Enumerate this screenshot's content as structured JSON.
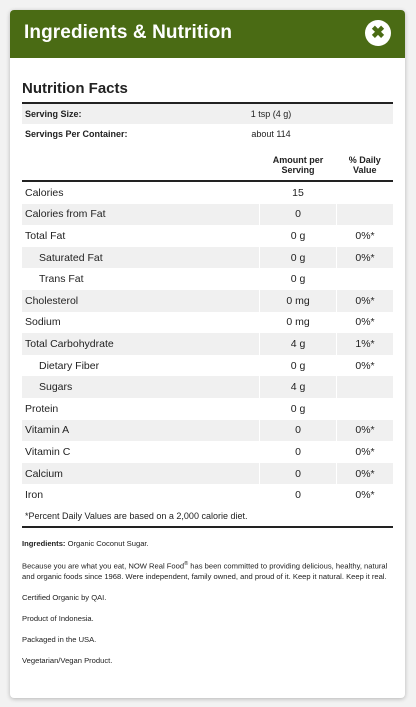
{
  "header": {
    "title": "Ingredients & Nutrition",
    "close_glyph": "✖"
  },
  "nutrition": {
    "title": "Nutrition Facts",
    "serving_size_label": "Serving Size:",
    "serving_size_value": "1 tsp (4 g)",
    "servings_per_container_label": "Servings Per Container:",
    "servings_per_container_value": "about 114",
    "columns": {
      "amount": "Amount per Serving",
      "dv": "% Daily Value"
    },
    "rows": [
      {
        "name": "Calories",
        "amount": "15",
        "dv": "",
        "indent": false
      },
      {
        "name": "Calories from Fat",
        "amount": "0",
        "dv": "",
        "indent": false
      },
      {
        "name": "Total Fat",
        "amount": "0 g",
        "dv": "0%*",
        "indent": false
      },
      {
        "name": "Saturated Fat",
        "amount": "0 g",
        "dv": "0%*",
        "indent": true
      },
      {
        "name": "Trans Fat",
        "amount": "0 g",
        "dv": "",
        "indent": true
      },
      {
        "name": "Cholesterol",
        "amount": "0 mg",
        "dv": "0%*",
        "indent": false
      },
      {
        "name": "Sodium",
        "amount": "0 mg",
        "dv": "0%*",
        "indent": false
      },
      {
        "name": "Total Carbohydrate",
        "amount": "4 g",
        "dv": "1%*",
        "indent": false
      },
      {
        "name": "Dietary Fiber",
        "amount": "0 g",
        "dv": "0%*",
        "indent": true
      },
      {
        "name": "Sugars",
        "amount": "4 g",
        "dv": "",
        "indent": true
      },
      {
        "name": "Protein",
        "amount": "0 g",
        "dv": "",
        "indent": false
      },
      {
        "name": "Vitamin A",
        "amount": "0",
        "dv": "0%*",
        "indent": false
      },
      {
        "name": "Vitamin C",
        "amount": "0",
        "dv": "0%*",
        "indent": false
      },
      {
        "name": "Calcium",
        "amount": "0",
        "dv": "0%*",
        "indent": false
      },
      {
        "name": "Iron",
        "amount": "0",
        "dv": "0%*",
        "indent": false
      }
    ],
    "footnote": "*Percent Daily Values are based on a 2,000 calorie diet."
  },
  "info": {
    "ingredients_label": "Ingredients:",
    "ingredients_value": "Organic Coconut Sugar.",
    "paragraph_part1": "Because you are what you eat, NOW Real Food",
    "paragraph_reg": "®",
    "paragraph_part2": " has been committed to providing delicious, healthy, natural and organic foods since 1968. Were independent, family owned, and proud of it. Keep it natural. Keep it real.",
    "certified": "Certified Organic by QAI.",
    "product_of": "Product of Indonesia.",
    "packaged": "Packaged in the USA.",
    "vegetarian": "Vegetarian/Vegan Product."
  },
  "colors": {
    "header_bg": "#4a6b14",
    "row_shade": "#f0f0f0"
  }
}
